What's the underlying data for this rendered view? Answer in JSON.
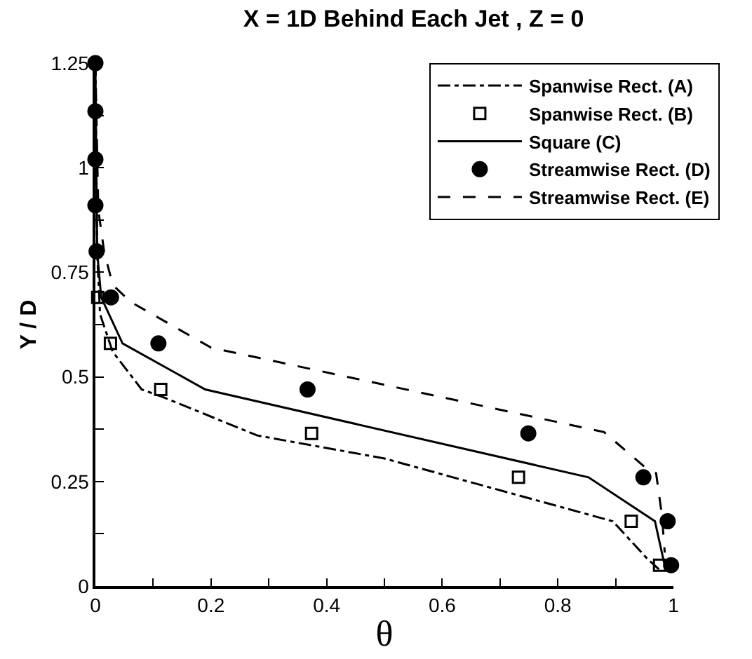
{
  "chart_data": {
    "type": "line",
    "title": "X = 1D Behind Each Jet , Z = 0",
    "xlabel": "θ",
    "ylabel": "Y / D",
    "xlim": [
      0,
      1
    ],
    "ylim": [
      0,
      1.25
    ],
    "xticks": [
      0,
      {
        "value": 0.1,
        "label": null
      },
      0.2,
      {
        "value": 0.3,
        "label": null
      },
      0.4,
      {
        "value": 0.5,
        "label": null
      },
      0.6,
      {
        "value": 0.7,
        "label": null
      },
      0.8,
      {
        "value": 0.9,
        "label": null
      },
      1
    ],
    "yticks": [
      0,
      {
        "value": 0.125,
        "label": null
      },
      0.25,
      {
        "value": 0.375,
        "label": null
      },
      0.5,
      {
        "value": 0.625,
        "label": null
      },
      0.75,
      {
        "value": 0.875,
        "label": null
      },
      1,
      {
        "value": 1.125,
        "label": null
      },
      1.25
    ],
    "grid": false,
    "legend": "top right",
    "series": [
      {
        "name": "Spanwise Rect. (A)",
        "line_style": "dashdot",
        "marker": "none",
        "color": "#000000",
        "x": [
          0,
          0.003,
          0.008,
          0.03,
          0.08,
          0.12,
          0.28,
          0.5,
          0.895,
          0.955,
          0.975
        ],
        "values": [
          1.25,
          0.8,
          0.65,
          0.56,
          0.47,
          0.45,
          0.36,
          0.305,
          0.155,
          0.065,
          0.04
        ]
      },
      {
        "name": "Spanwise Rect. (B)",
        "type": "scatter",
        "marker": "square",
        "color": "#000000",
        "x": [
          0.004,
          0.026,
          0.113,
          0.374,
          0.732,
          0.927,
          0.976
        ],
        "values": [
          0.69,
          0.58,
          0.47,
          0.365,
          0.26,
          0.155,
          0.05
        ]
      },
      {
        "name": "Square (C)",
        "line_style": "solid",
        "marker": "none",
        "color": "#000000",
        "x": [
          0,
          0.003,
          0.01,
          0.047,
          0.19,
          0.853,
          0.968,
          0.984
        ],
        "values": [
          1.25,
          0.8,
          0.69,
          0.58,
          0.47,
          0.26,
          0.155,
          0.055
        ]
      },
      {
        "name": "Streamwise Rect. (D)",
        "type": "scatter",
        "marker": "circle",
        "color": "#000000",
        "x": [
          0,
          0,
          0,
          0,
          0.002,
          0.027,
          0.109,
          0.367,
          0.749,
          0.948,
          0.99,
          0.996
        ],
        "values": [
          1.25,
          1.135,
          1.02,
          0.91,
          0.8,
          0.69,
          0.58,
          0.47,
          0.365,
          0.26,
          0.155,
          0.05
        ]
      },
      {
        "name": "Streamwise Rect. (E)",
        "line_style": "dashed",
        "marker": "none",
        "color": "#000000",
        "x": [
          0,
          0.005,
          0.015,
          0.03,
          0.06,
          0.2,
          0.47,
          0.88,
          0.95,
          0.97,
          0.98,
          0.985
        ],
        "values": [
          1.25,
          0.9,
          0.8,
          0.72,
          0.68,
          0.57,
          0.49,
          0.368,
          0.285,
          0.27,
          0.17,
          0.08
        ]
      }
    ]
  }
}
